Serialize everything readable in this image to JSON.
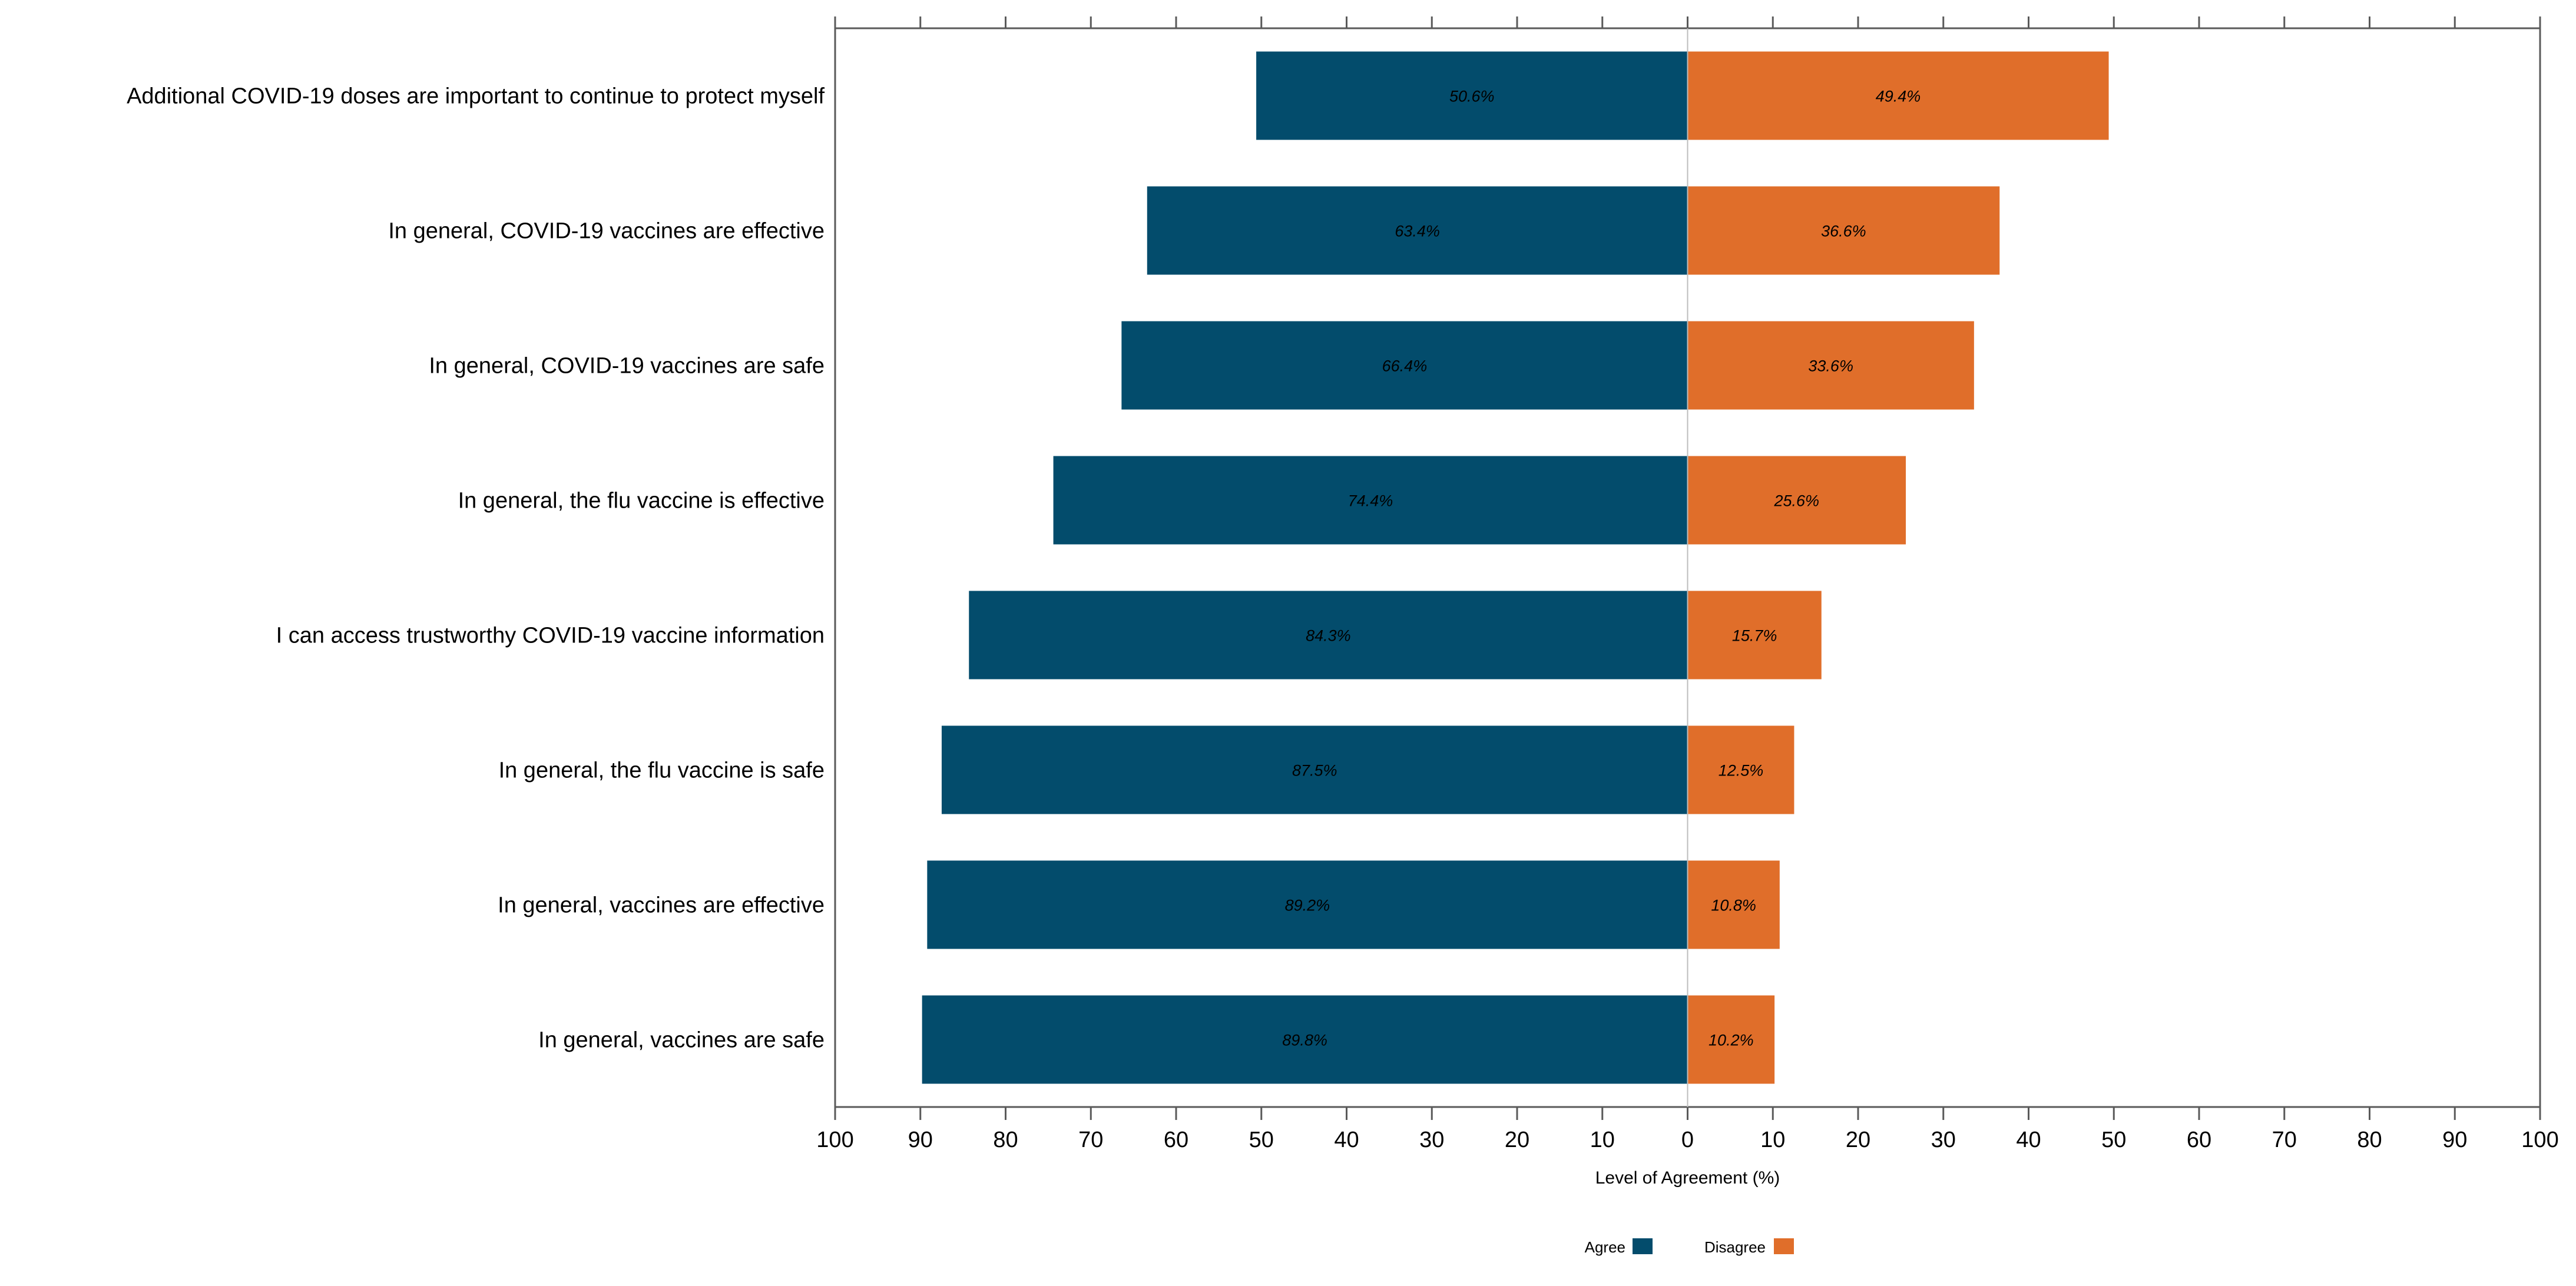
{
  "chart_data": {
    "type": "bar",
    "orientation": "horizontal-diverging",
    "title": "",
    "xlabel": "Level of Agreement (%)",
    "ylabel": "",
    "xlim": [
      -100,
      100
    ],
    "x_ticks": [
      -100,
      -90,
      -80,
      -70,
      -60,
      -50,
      -40,
      -30,
      -20,
      -10,
      0,
      10,
      20,
      30,
      40,
      50,
      60,
      70,
      80,
      90,
      100
    ],
    "x_tick_labels": [
      "100",
      "90",
      "80",
      "70",
      "60",
      "50",
      "40",
      "30",
      "20",
      "10",
      "0",
      "10",
      "20",
      "30",
      "40",
      "50",
      "60",
      "70",
      "80",
      "90",
      "100"
    ],
    "categories": [
      "Additional COVID-19 doses are important to continue to protect myself",
      "In general, COVID-19 vaccines are effective",
      "In general, COVID-19 vaccines are safe",
      "In general, the flu vaccine is effective",
      "I can access trustworthy COVID-19 vaccine information",
      "In general, the flu vaccine is safe",
      "In general, vaccines are effective",
      "In general, vaccines are safe"
    ],
    "series": [
      {
        "name": "Agree",
        "color": "#034C6C",
        "direction": "left",
        "values": [
          50.6,
          63.4,
          66.4,
          74.4,
          84.3,
          87.5,
          89.2,
          89.8
        ],
        "labels": [
          "50.6%",
          "63.4%",
          "66.4%",
          "74.4%",
          "84.3%",
          "87.5%",
          "89.2%",
          "89.8%"
        ]
      },
      {
        "name": "Disagree",
        "color": "#E06E2A",
        "direction": "right",
        "values": [
          49.4,
          36.6,
          33.6,
          25.6,
          15.7,
          12.5,
          10.8,
          10.2
        ],
        "labels": [
          "49.4%",
          "36.6%",
          "33.6%",
          "25.6%",
          "15.7%",
          "12.5%",
          "10.8%",
          "10.2%"
        ]
      }
    ],
    "legend": {
      "position": "bottom-center",
      "entries": [
        "Agree",
        "Disagree"
      ]
    },
    "grid": false
  }
}
